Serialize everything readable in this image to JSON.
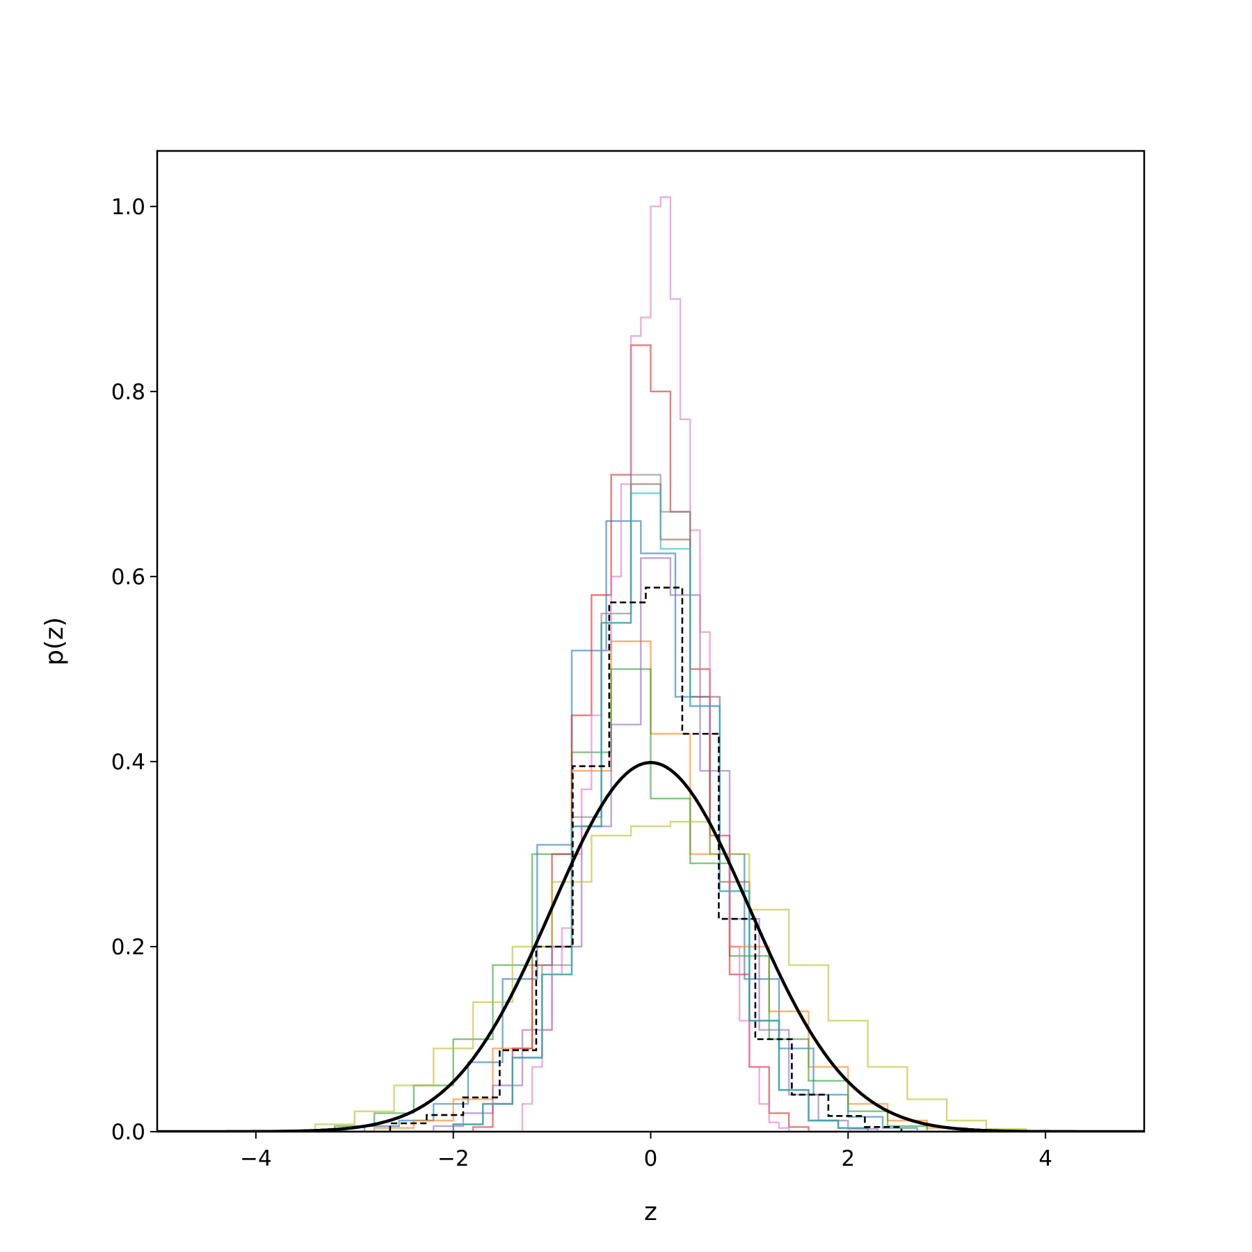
{
  "chart_data": {
    "type": "histogram",
    "xlabel": "z",
    "ylabel": "p(z)",
    "xlim": [
      -5,
      5
    ],
    "ylim": [
      0,
      1.06
    ],
    "x_ticks": [
      -4,
      -2,
      0,
      2,
      4
    ],
    "x_tick_labels": [
      "−4",
      "−2",
      "0",
      "2",
      "4"
    ],
    "y_ticks": [
      0.0,
      0.2,
      0.4,
      0.6,
      0.8,
      1.0
    ],
    "y_tick_labels": [
      "0.0",
      "0.2",
      "0.4",
      "0.6",
      "0.8",
      "1.0"
    ],
    "grid": false,
    "legend": "none",
    "reference_curve": {
      "style": "solid",
      "color": "#000000",
      "mu": 0,
      "sigma": 1
    },
    "series": [
      {
        "color": "#1f77b4",
        "style": "step",
        "opacity": 0.6,
        "edges": [
          -2.9,
          -2.55,
          -2.2,
          -1.85,
          -1.5,
          -1.15,
          -0.8,
          -0.45,
          -0.1,
          0.25,
          0.6,
          0.95,
          1.3,
          1.65,
          2.0,
          2.35,
          2.7
        ],
        "values": [
          0.006,
          0.012,
          0.03,
          0.075,
          0.165,
          0.31,
          0.52,
          0.66,
          0.625,
          0.47,
          0.3,
          0.165,
          0.09,
          0.04,
          0.016,
          0.004
        ]
      },
      {
        "color": "#ff7f0e",
        "style": "step",
        "opacity": 0.6,
        "edges": [
          -2.8,
          -2.4,
          -2.0,
          -1.6,
          -1.2,
          -0.8,
          -0.4,
          0.0,
          0.4,
          0.8,
          1.2,
          1.6,
          2.0,
          2.4,
          2.8,
          3.2
        ],
        "values": [
          0.004,
          0.012,
          0.035,
          0.09,
          0.2,
          0.39,
          0.53,
          0.43,
          0.3,
          0.2,
          0.13,
          0.07,
          0.03,
          0.012,
          0.004
        ]
      },
      {
        "color": "#2ca02c",
        "style": "step",
        "opacity": 0.6,
        "edges": [
          -3.2,
          -2.8,
          -2.4,
          -2.0,
          -1.6,
          -1.2,
          -0.8,
          -0.4,
          0.0,
          0.4,
          0.8,
          1.2,
          1.6,
          2.0,
          2.4,
          2.8
        ],
        "values": [
          0.006,
          0.02,
          0.05,
          0.1,
          0.18,
          0.3,
          0.41,
          0.5,
          0.36,
          0.29,
          0.19,
          0.1,
          0.055,
          0.022,
          0.006
        ]
      },
      {
        "color": "#d62728",
        "style": "step",
        "opacity": 0.6,
        "edges": [
          -1.8,
          -1.6,
          -1.4,
          -1.2,
          -1.0,
          -0.8,
          -0.6,
          -0.4,
          -0.2,
          0.0,
          0.2,
          0.4,
          0.6,
          0.8,
          1.0,
          1.2,
          1.4,
          1.6
        ],
        "values": [
          0.005,
          0.03,
          0.09,
          0.18,
          0.3,
          0.45,
          0.58,
          0.71,
          0.85,
          0.8,
          0.67,
          0.5,
          0.32,
          0.17,
          0.07,
          0.02,
          0.005
        ]
      },
      {
        "color": "#9467bd",
        "style": "step",
        "opacity": 0.6,
        "edges": [
          -2.2,
          -1.9,
          -1.6,
          -1.3,
          -1.0,
          -0.7,
          -0.4,
          -0.1,
          0.2,
          0.5,
          0.8,
          1.1,
          1.4,
          1.7,
          2.0,
          2.3
        ],
        "values": [
          0.006,
          0.02,
          0.05,
          0.11,
          0.2,
          0.33,
          0.44,
          0.62,
          0.58,
          0.39,
          0.23,
          0.11,
          0.04,
          0.012,
          0.003
        ]
      },
      {
        "color": "#8c564b",
        "style": "step",
        "opacity": 0.6,
        "edges": [
          -2.0,
          -1.7,
          -1.4,
          -1.1,
          -0.8,
          -0.5,
          -0.2,
          0.1,
          0.4,
          0.7,
          1.0,
          1.3,
          1.6,
          1.9,
          2.2
        ],
        "values": [
          0.008,
          0.03,
          0.08,
          0.17,
          0.33,
          0.55,
          0.7,
          0.64,
          0.47,
          0.27,
          0.12,
          0.045,
          0.012,
          0.004
        ]
      },
      {
        "color": "#e377c2",
        "style": "step",
        "opacity": 0.6,
        "edges": [
          -1.3,
          -1.2,
          -1.1,
          -1.0,
          -0.9,
          -0.8,
          -0.7,
          -0.6,
          -0.5,
          -0.4,
          -0.3,
          -0.2,
          -0.1,
          0.0,
          0.1,
          0.2,
          0.3,
          0.4,
          0.5,
          0.6,
          0.7,
          0.8,
          0.9,
          1.0,
          1.1,
          1.2,
          1.3,
          1.4
        ],
        "values": [
          0.03,
          0.07,
          0.11,
          0.17,
          0.22,
          0.3,
          0.37,
          0.45,
          0.52,
          0.6,
          0.7,
          0.86,
          0.88,
          1.0,
          1.01,
          0.9,
          0.77,
          0.65,
          0.54,
          0.43,
          0.3,
          0.2,
          0.12,
          0.07,
          0.03,
          0.01,
          0.004
        ]
      },
      {
        "color": "#7f7f7f",
        "style": "step",
        "opacity": 0.6,
        "edges": [
          -2.0,
          -1.7,
          -1.4,
          -1.1,
          -0.8,
          -0.5,
          -0.2,
          0.1,
          0.4,
          0.7,
          1.0,
          1.3,
          1.6,
          1.9,
          2.2
        ],
        "values": [
          0.008,
          0.03,
          0.08,
          0.18,
          0.34,
          0.56,
          0.71,
          0.67,
          0.46,
          0.26,
          0.12,
          0.045,
          0.012,
          0.004
        ]
      },
      {
        "color": "#bcbd22",
        "style": "step",
        "opacity": 0.6,
        "edges": [
          -3.4,
          -3.0,
          -2.6,
          -2.2,
          -1.8,
          -1.4,
          -1.0,
          -0.6,
          -0.2,
          0.2,
          0.6,
          1.0,
          1.4,
          1.8,
          2.2,
          2.6,
          3.0,
          3.4,
          3.8
        ],
        "values": [
          0.008,
          0.022,
          0.05,
          0.09,
          0.14,
          0.2,
          0.27,
          0.32,
          0.33,
          0.335,
          0.3,
          0.24,
          0.18,
          0.12,
          0.07,
          0.035,
          0.012,
          0.003
        ]
      },
      {
        "color": "#17becf",
        "style": "step",
        "opacity": 0.6,
        "edges": [
          -2.0,
          -1.7,
          -1.4,
          -1.1,
          -0.8,
          -0.5,
          -0.2,
          0.1,
          0.4,
          0.7,
          1.0,
          1.3,
          1.6,
          1.9,
          2.2
        ],
        "values": [
          0.008,
          0.03,
          0.08,
          0.17,
          0.33,
          0.55,
          0.69,
          0.63,
          0.46,
          0.26,
          0.12,
          0.045,
          0.012,
          0.004
        ]
      },
      {
        "color": "#000000",
        "style": "dashed",
        "opacity": 1.0,
        "edges": [
          -2.64,
          -2.27,
          -1.9,
          -1.53,
          -1.16,
          -0.79,
          -0.42,
          -0.05,
          0.32,
          0.69,
          1.06,
          1.43,
          1.8,
          2.17,
          2.54
        ],
        "values": [
          0.009,
          0.018,
          0.037,
          0.088,
          0.2,
          0.395,
          0.572,
          0.588,
          0.43,
          0.23,
          0.1,
          0.04,
          0.017,
          0.005
        ]
      }
    ]
  }
}
